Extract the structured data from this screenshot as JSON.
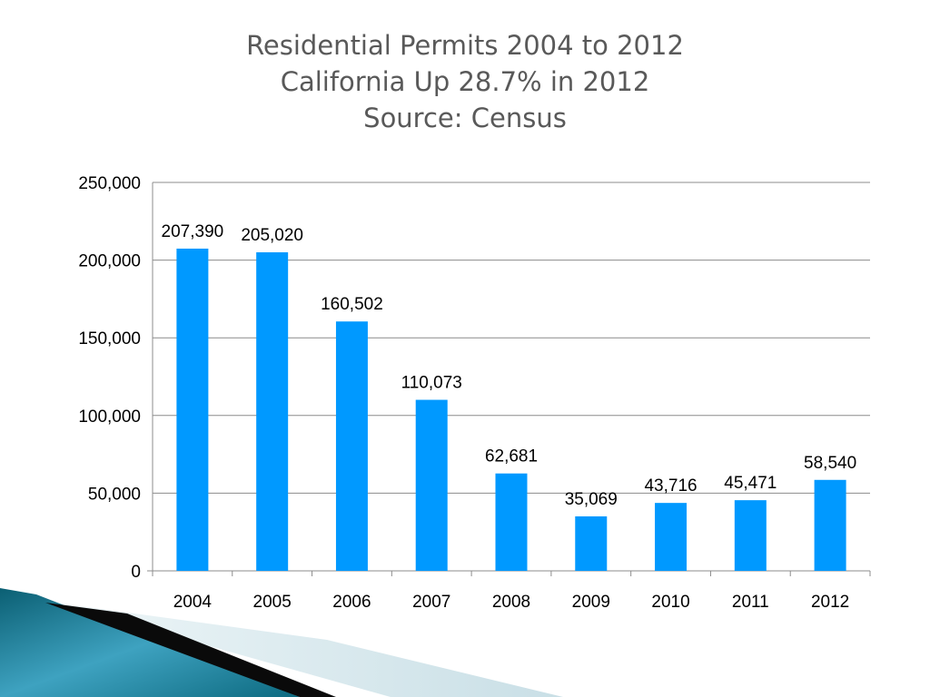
{
  "chart_data": {
    "type": "bar",
    "title": [
      "Residential Permits 2004 to 2012",
      "California Up 28.7% in 2012",
      "Source: Census"
    ],
    "categories": [
      "2004",
      "2005",
      "2006",
      "2007",
      "2008",
      "2009",
      "2010",
      "2011",
      "2012"
    ],
    "values": [
      207390,
      205020,
      160502,
      110073,
      62681,
      35069,
      43716,
      45471,
      58540
    ],
    "value_labels": [
      "207,390",
      "205,020",
      "160,502",
      "110,073",
      "62,681",
      "35,069",
      "43,716",
      "45,471",
      "58,540"
    ],
    "ylim": [
      0,
      250000
    ],
    "yticks": [
      0,
      50000,
      100000,
      150000,
      200000,
      250000
    ],
    "ytick_labels": [
      "0",
      "50,000",
      "100,000",
      "150,000",
      "200,000",
      "250,000"
    ],
    "xlabel": "",
    "ylabel": "",
    "grid": true,
    "legend": "none",
    "bar_color": "#0099FF"
  }
}
